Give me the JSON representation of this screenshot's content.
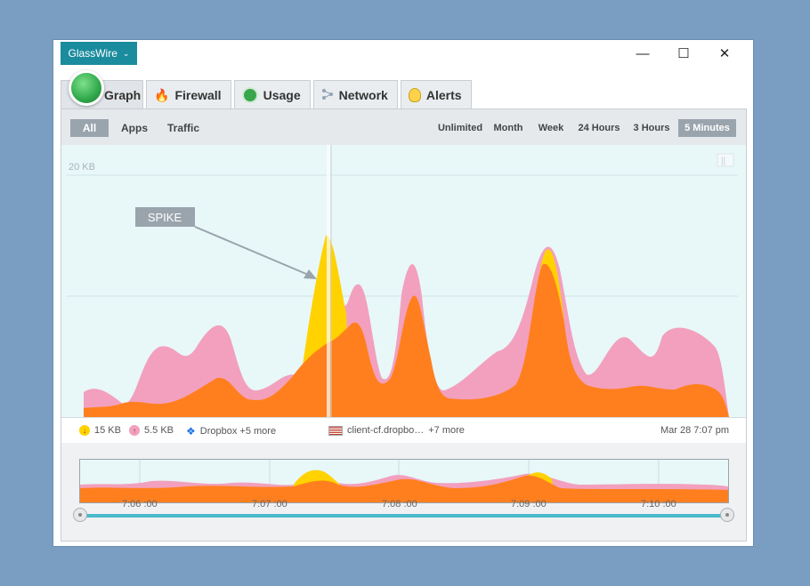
{
  "app": {
    "menu_label": "GlassWire"
  },
  "window_controls": {
    "minimize": "—",
    "maximize": "☐",
    "close": "✕"
  },
  "tabs": [
    {
      "label": "Graph",
      "icon": "glasswire-logo-icon",
      "active": true
    },
    {
      "label": "Firewall",
      "icon": "flame-icon",
      "active": false
    },
    {
      "label": "Usage",
      "icon": "pie-icon",
      "active": false
    },
    {
      "label": "Network",
      "icon": "network-icon",
      "active": false
    },
    {
      "label": "Alerts",
      "icon": "bulb-icon",
      "active": false
    }
  ],
  "filters": {
    "all": "All",
    "apps": "Apps",
    "traffic": "Traffic",
    "selected": "All"
  },
  "ranges": {
    "unlimited": "Unlimited",
    "month": "Month",
    "week": "Week",
    "h24": "24 Hours",
    "h3": "3 Hours",
    "m5": "5 Minutes",
    "selected": "5 Minutes"
  },
  "graph": {
    "scale_label": "20 KB",
    "annotation": "SPIKE"
  },
  "legend": {
    "download": "15 KB",
    "upload": "5.5 KB",
    "app": "Dropbox +5 more",
    "host": "client-cf.dropbo…",
    "host_more": "+7 more",
    "timestamp": "Mar 28 7:07 pm"
  },
  "timeline": {
    "ticks": [
      "7:06 :00",
      "7:07 :00",
      "7:08 :00",
      "7:09 :00",
      "7:10 :00"
    ]
  },
  "colors": {
    "accent": "#1b8c9e",
    "download": "#ffd200",
    "upload": "#f29ab8",
    "total": "#ff7f1e",
    "graph_bg": "#e8f7f8"
  }
}
